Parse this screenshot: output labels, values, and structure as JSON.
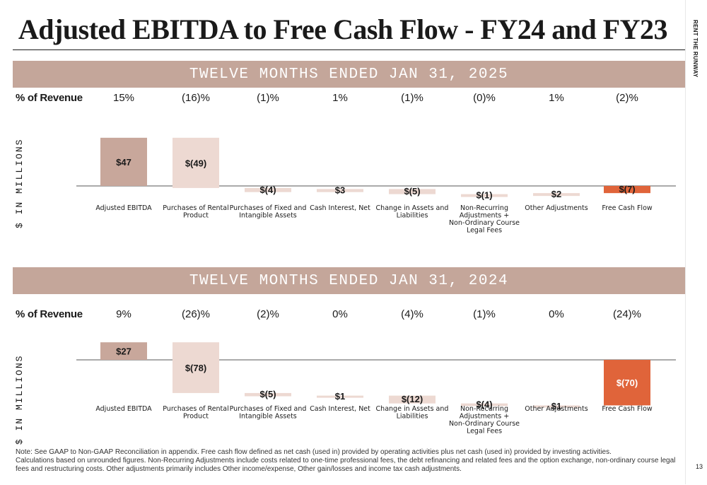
{
  "title": "Adjusted EBITDA to Free Cash Flow - FY24 and FY23",
  "brand": "RENT THE RUNWAY",
  "page_number": "13",
  "pct_label": "% of Revenue",
  "y_label": "$ IN MILLIONS",
  "colors": {
    "band": "#c4a69a",
    "total": "#c8a79b",
    "step": "#edd9d2",
    "final": "#e0643a",
    "axis": "#555555"
  },
  "notes": [
    "Note: See GAAP to Non-GAAP Reconciliation in appendix. Free cash flow defined as net cash (used in) provided by operating activities plus net cash (used in) provided by investing activities.",
    "Calculations based on unrounded figures. Non-Recurring Adjustments include costs related to one-time professional fees, the debt refinancing and related fees and the option exchange, non-ordinary course legal fees and restructuring costs. Other adjustments primarily includes Other income/expense, Other gain/losses and income tax cash adjustments."
  ],
  "chart_data": [
    {
      "type": "bar",
      "title": "TWELVE MONTHS ENDED JAN 31, 2025",
      "ylabel": "$ IN MILLIONS",
      "categories": [
        "Adjusted EBITDA",
        "Purchases of Rental Product",
        "Purchases of Fixed and Intangible Assets",
        "Cash Interest, Net",
        "Change in Assets and Liabilities",
        "Non-Recurring Adjustments + Non-Ordinary Course Legal Fees",
        "Other Adjustments",
        "Free Cash Flow"
      ],
      "category_lines": [
        [
          "Adjusted EBITDA"
        ],
        [
          "Purchases of Rental",
          "Product"
        ],
        [
          "Purchases of Fixed and",
          "Intangible Assets"
        ],
        [
          "Cash Interest, Net"
        ],
        [
          "Change in Assets and",
          "Liabilities"
        ],
        [
          "Non-Recurring",
          "Adjustments +",
          "Non-Ordinary Course",
          "Legal Fees"
        ],
        [
          "Other Adjustments"
        ],
        [
          "Free Cash Flow"
        ]
      ],
      "values": [
        47,
        -49,
        -4,
        3,
        -5,
        -1,
        2,
        -7
      ],
      "value_labels": [
        "$47",
        "$(49)",
        "$(4)",
        "$3",
        "$(5)",
        "$(1)",
        "$2",
        "$(7)"
      ],
      "pct_of_revenue": [
        "15%",
        "(16)%",
        "(1)%",
        "1%",
        "(1)%",
        "(0)%",
        "1%",
        "(2)%"
      ],
      "kinds": [
        "total",
        "step",
        "step",
        "step",
        "step",
        "step",
        "step",
        "final"
      ]
    },
    {
      "type": "bar",
      "title": "TWELVE MONTHS ENDED JAN 31, 2024",
      "ylabel": "$ IN MILLIONS",
      "categories": [
        "Adjusted EBITDA",
        "Purchases of Rental Product",
        "Purchases of Fixed and Intangible Assets",
        "Cash Interest, Net",
        "Change in Assets and Liabilities",
        "Non-Recurring Adjustments + Non-Ordinary Course Legal Fees",
        "Other Adjustments",
        "Free Cash Flow"
      ],
      "category_lines": [
        [
          "Adjusted EBITDA"
        ],
        [
          "Purchases of Rental",
          "Product"
        ],
        [
          "Purchases of Fixed and",
          "Intangible Assets"
        ],
        [
          "Cash Interest, Net"
        ],
        [
          "Change in Assets and",
          "Liabilities"
        ],
        [
          "Non-Recurring",
          "Adjustments +",
          "Non-Ordinary Course",
          "Legal Fees"
        ],
        [
          "Other Adjustments"
        ],
        [
          "Free Cash Flow"
        ]
      ],
      "values": [
        27,
        -78,
        -5,
        1,
        -12,
        -4,
        1,
        -70
      ],
      "value_labels": [
        "$27",
        "$(78)",
        "$(5)",
        "$1",
        "$(12)",
        "$(4)",
        "$1",
        "$(70)"
      ],
      "pct_of_revenue": [
        "9%",
        "(26)%",
        "(2)%",
        "0%",
        "(4)%",
        "(1)%",
        "0%",
        "(24)%"
      ],
      "kinds": [
        "total",
        "step",
        "step",
        "step",
        "step",
        "step",
        "step",
        "final"
      ]
    }
  ]
}
